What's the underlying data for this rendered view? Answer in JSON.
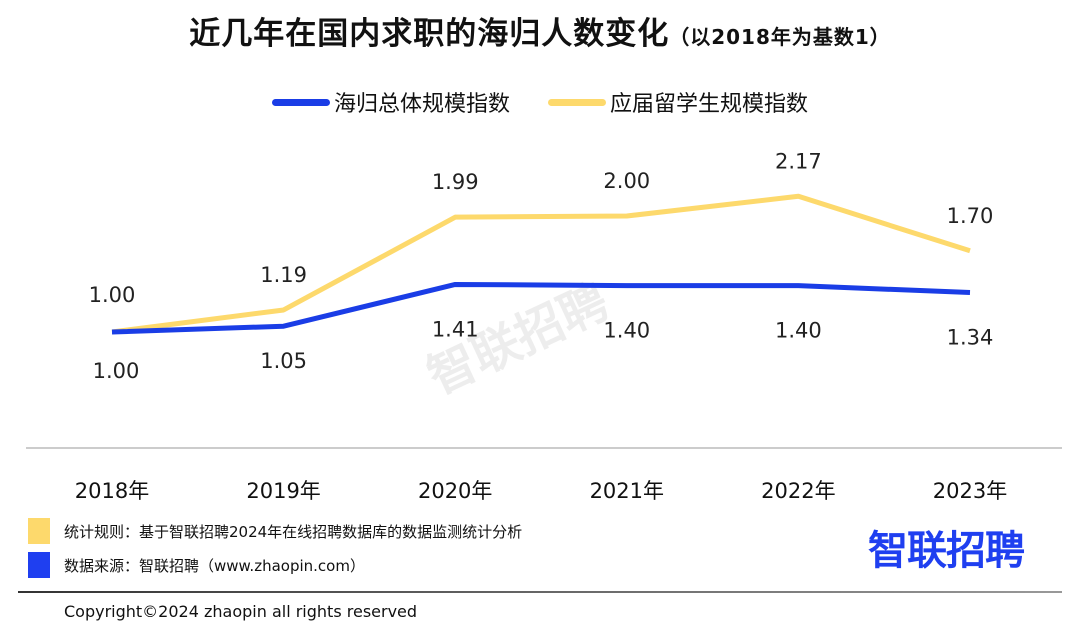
{
  "chart_data": {
    "type": "line",
    "title": "近几年在国内求职的海归人数变化",
    "subtitle": "（以2018年为基数1）",
    "categories": [
      "2018年",
      "2019年",
      "2020年",
      "2021年",
      "2022年",
      "2023年"
    ],
    "series": [
      {
        "name": "海归总体规模指数",
        "color": "#1a3de6",
        "values": [
          1.0,
          1.05,
          1.41,
          1.4,
          1.4,
          1.34
        ],
        "labels": [
          "1.00",
          "1.05",
          "1.41",
          "1.40",
          "1.40",
          "1.34"
        ]
      },
      {
        "name": "应届留学生规模指数",
        "color": "#fdd96c",
        "values": [
          1.0,
          1.19,
          1.99,
          2.0,
          2.17,
          1.7
        ],
        "labels": [
          "1.00",
          "1.19",
          "1.99",
          "2.00",
          "2.17",
          "1.70"
        ]
      }
    ],
    "legend": "top-center",
    "grid": false
  },
  "notes": [
    {
      "text": "统计规则：基于智联招聘2024年在线招聘数据库的数据监测统计分析",
      "color": "#fdd96c"
    },
    {
      "text": "数据来源：智联招聘（www.zhaopin.com）",
      "color": "#1f3ff0"
    }
  ],
  "logo": "智联招聘",
  "watermark": "智联招聘",
  "copyright": "Copyright©2024 zhaopin all rights reserved"
}
